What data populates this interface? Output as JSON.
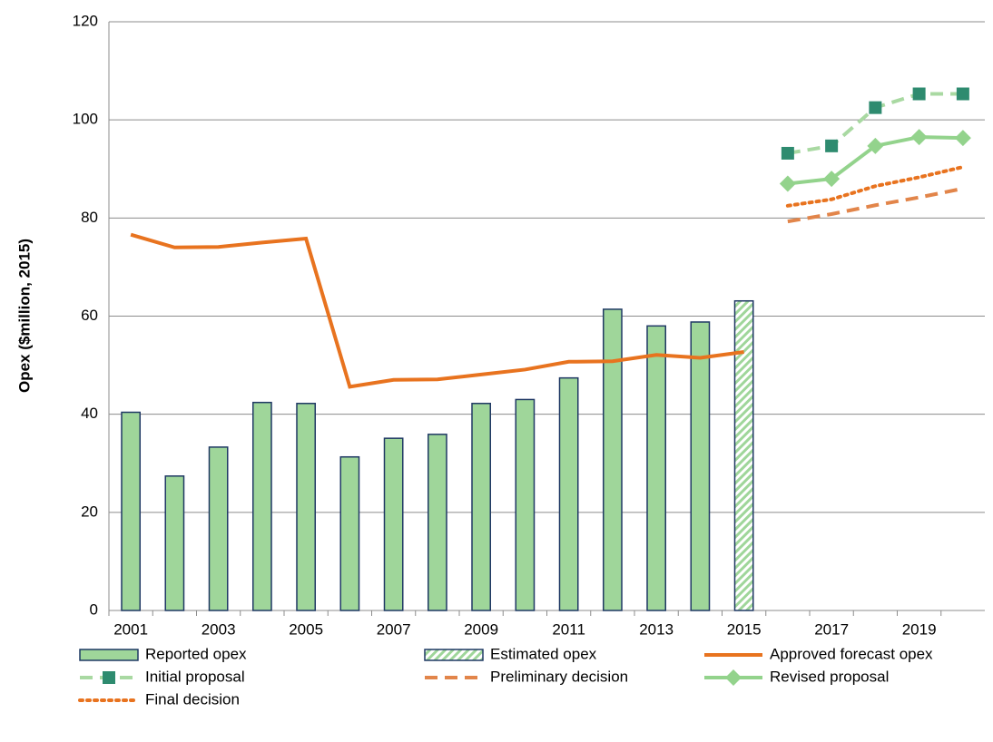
{
  "chart_data": {
    "type": "bar",
    "ylabel": "Opex ($million, 2015)",
    "categories": [
      "2001",
      null,
      "2003",
      null,
      "2005",
      null,
      "2007",
      null,
      "2009",
      null,
      "2011",
      null,
      "2013",
      null,
      "2015",
      null,
      "2017",
      null,
      "2019",
      null
    ],
    "ylim": [
      0,
      120
    ],
    "yticks": [
      0,
      20,
      40,
      60,
      80,
      100,
      120
    ],
    "grid": true,
    "series": [
      {
        "name": "Reported opex",
        "type": "bar",
        "color": "#9fd69a",
        "edge": "#1f3864",
        "values": [
          40.4,
          27.4,
          33.3,
          42.4,
          42.2,
          31.3,
          35.1,
          35.9,
          42.2,
          43.0,
          47.4,
          61.4,
          58.0,
          58.8,
          null,
          null,
          null,
          null,
          null,
          null
        ]
      },
      {
        "name": "Estimated opex",
        "type": "bar",
        "color": "#9fd69a",
        "edge": "#1f3864",
        "hatch": true,
        "values": [
          null,
          null,
          null,
          null,
          null,
          null,
          null,
          null,
          null,
          null,
          null,
          null,
          null,
          null,
          63.1,
          null,
          null,
          null,
          null,
          null
        ]
      },
      {
        "name": "Approved forecast opex",
        "type": "line",
        "color": "#e8731f",
        "dash": "solid",
        "values": [
          76.6,
          74.0,
          74.1,
          75.0,
          75.8,
          45.6,
          47.0,
          47.1,
          48.1,
          49.1,
          50.7,
          50.8,
          52.1,
          51.5,
          52.7,
          null,
          null,
          null,
          null,
          null
        ]
      },
      {
        "name": "Initial proposal",
        "type": "line",
        "color": "#a9d9a2",
        "dash": "dashed",
        "marker": "square",
        "marker_color": "#2e8b6f",
        "values": [
          null,
          null,
          null,
          null,
          null,
          null,
          null,
          null,
          null,
          null,
          null,
          null,
          null,
          null,
          null,
          93.2,
          94.7,
          102.5,
          105.3,
          105.3
        ]
      },
      {
        "name": "Preliminary decision",
        "type": "line",
        "color": "#e2854a",
        "dash": "dashed",
        "values": [
          null,
          null,
          null,
          null,
          null,
          null,
          null,
          null,
          null,
          null,
          null,
          null,
          null,
          null,
          null,
          79.3,
          80.8,
          82.6,
          84.2,
          86.0
        ]
      },
      {
        "name": "Revised proposal",
        "type": "line",
        "color": "#93d38c",
        "dash": "solid",
        "marker": "diamond",
        "marker_color": "#93d38c",
        "values": [
          null,
          null,
          null,
          null,
          null,
          null,
          null,
          null,
          null,
          null,
          null,
          null,
          null,
          null,
          null,
          87.0,
          88.0,
          94.7,
          96.5,
          96.3
        ]
      },
      {
        "name": "Final decision",
        "type": "line",
        "color": "#e8731f",
        "dash": "dotted",
        "values": [
          null,
          null,
          null,
          null,
          null,
          null,
          null,
          null,
          null,
          null,
          null,
          null,
          null,
          null,
          null,
          82.5,
          83.8,
          86.5,
          88.3,
          90.4
        ]
      }
    ]
  }
}
